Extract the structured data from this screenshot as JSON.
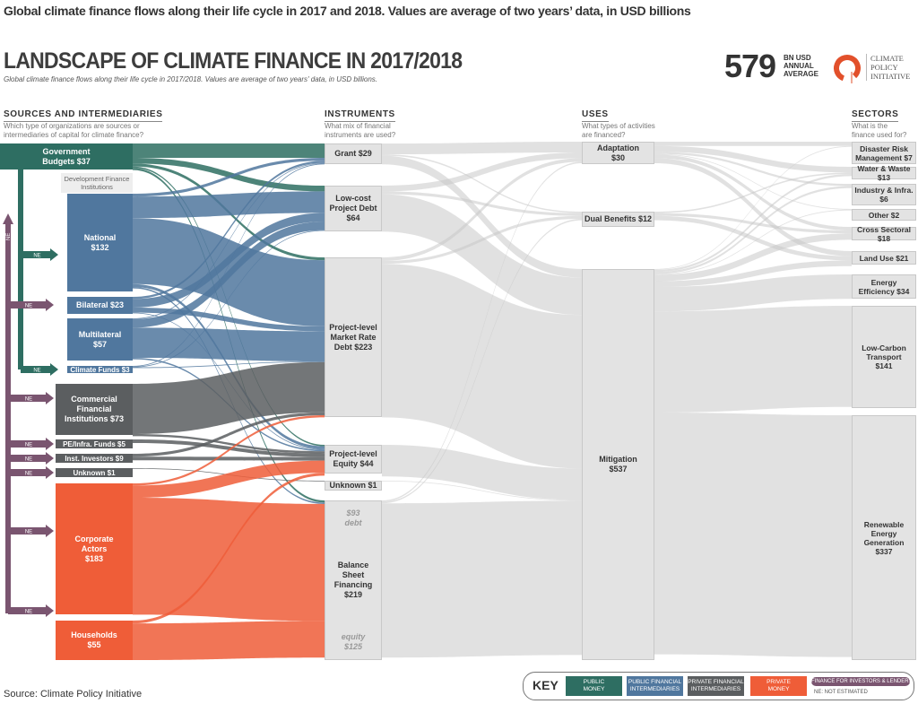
{
  "caption": "Global climate finance flows along their life cycle in 2017 and 2018. Values are average of two years’ data, in USD billions",
  "title": "LANDSCAPE OF CLIMATE FINANCE IN 2017/2018",
  "subtitle": "Global climate finance flows along their life cycle in 2017/2018. Values are average of two years' data, in USD billions.",
  "total": {
    "value": "579",
    "unit": "BN USD\nANNUAL\nAVERAGE"
  },
  "logo": {
    "text": "CLIMATE\nPOLICY\nINITIATIVE",
    "color": "#e2502b"
  },
  "columns": [
    {
      "title": "SOURCES AND INTERMEDIARIES",
      "question": "Which type of organizations are sources or\nintermediaries of capital for climate finance?"
    },
    {
      "title": "INSTRUMENTS",
      "question": "What mix of financial\ninstruments are used?"
    },
    {
      "title": "USES",
      "question": "What types of activities\nare financed?"
    },
    {
      "title": "SECTORS",
      "question": "What is the\nfinance used for?"
    }
  ],
  "colors": {
    "public": "#2e6e62",
    "public_intermediary": "#50779e",
    "private_intermediary": "#5b5e60",
    "private": "#ef5d38",
    "investors": "#7a5570",
    "neutral": "#e3e3e3",
    "flow_gray": "#c9c9c9"
  },
  "dfi_label": "Development Finance\nInstitutions",
  "ne_label": "NE",
  "sources": [
    {
      "id": "gov",
      "label": "Government\nBudgets $37",
      "value": 37,
      "kind": "public"
    },
    {
      "id": "nat",
      "label": "National\n$132",
      "value": 132,
      "kind": "public_intermediary"
    },
    {
      "id": "bil",
      "label": "Bilateral $23",
      "value": 23,
      "kind": "public_intermediary"
    },
    {
      "id": "mul",
      "label": "Multilateral\n$57",
      "value": 57,
      "kind": "public_intermediary"
    },
    {
      "id": "cf",
      "label": "Climate Funds $3",
      "value": 3,
      "kind": "public_intermediary"
    },
    {
      "id": "com",
      "label": "Commercial\nFinancial\nInstitutions $73",
      "value": 73,
      "kind": "private_intermediary"
    },
    {
      "id": "pe",
      "label": "PE/Infra. Funds $5",
      "value": 5,
      "kind": "private_intermediary"
    },
    {
      "id": "inv",
      "label": "Inst. Investors $9",
      "value": 9,
      "kind": "private_intermediary"
    },
    {
      "id": "unk",
      "label": "Unknown $1",
      "value": 1,
      "kind": "private_intermediary"
    },
    {
      "id": "corp",
      "label": "Corporate\nActors\n$183",
      "value": 183,
      "kind": "private"
    },
    {
      "id": "hh",
      "label": "Households\n$55",
      "value": 55,
      "kind": "private"
    }
  ],
  "instruments": [
    {
      "id": "grant",
      "label": "Grant $29",
      "value": 29
    },
    {
      "id": "lcd",
      "label": "Low-cost\nProject Debt\n$64",
      "value": 64
    },
    {
      "id": "mrd",
      "label": "Project-level\nMarket Rate\nDebt $223",
      "value": 223
    },
    {
      "id": "eq",
      "label": "Project-level\nEquity $44",
      "value": 44
    },
    {
      "id": "iunk",
      "label": "Unknown $1",
      "value": 1
    },
    {
      "id": "bsf",
      "label": "Balance\nSheet\nFinancing\n$219",
      "value": 219,
      "debt": "$93\ndebt",
      "equity": "equity\n$125"
    }
  ],
  "uses": [
    {
      "id": "ada",
      "label": "Adaptation\n$30",
      "value": 30
    },
    {
      "id": "dual",
      "label": "Dual Benefits $12",
      "value": 12
    },
    {
      "id": "mit",
      "label": "Mitigation\n$537",
      "value": 537
    }
  ],
  "sectors": [
    {
      "id": "drm",
      "label": "Disaster Risk\nManagement $7",
      "value": 7
    },
    {
      "id": "ww",
      "label": "Water & Waste $13",
      "value": 13
    },
    {
      "id": "ind",
      "label": "Industry & Infra.\n$6",
      "value": 6
    },
    {
      "id": "oth",
      "label": "Other $2",
      "value": 2
    },
    {
      "id": "cs",
      "label": "Cross Sectoral $18",
      "value": 18
    },
    {
      "id": "lu",
      "label": "Land Use $21",
      "value": 21
    },
    {
      "id": "ee",
      "label": "Energy\nEfficiency $34",
      "value": 34
    },
    {
      "id": "lct",
      "label": "Low-Carbon\nTransport\n$141",
      "value": 141
    },
    {
      "id": "reg",
      "label": "Renewable\nEnergy\nGeneration\n$337",
      "value": 337
    }
  ],
  "links": [
    [
      "gov",
      "grant",
      20
    ],
    [
      "gov",
      "lcd",
      8
    ],
    [
      "gov",
      "mrd",
      4
    ],
    [
      "gov",
      "eq",
      2
    ],
    [
      "gov",
      "bsf",
      3
    ],
    [
      "nat",
      "grant",
      4
    ],
    [
      "nat",
      "lcd",
      30
    ],
    [
      "nat",
      "mrd",
      92
    ],
    [
      "nat",
      "eq",
      4
    ],
    [
      "nat",
      "bsf",
      2
    ],
    [
      "bil",
      "grant",
      3
    ],
    [
      "bil",
      "lcd",
      12
    ],
    [
      "bil",
      "mrd",
      7
    ],
    [
      "bil",
      "eq",
      1
    ],
    [
      "mul",
      "grant",
      1
    ],
    [
      "mul",
      "lcd",
      12
    ],
    [
      "mul",
      "mrd",
      42
    ],
    [
      "mul",
      "eq",
      2
    ],
    [
      "cf",
      "grant",
      1
    ],
    [
      "cf",
      "lcd",
      1
    ],
    [
      "cf",
      "mrd",
      1
    ],
    [
      "com",
      "mrd",
      70
    ],
    [
      "com",
      "eq",
      3
    ],
    [
      "pe",
      "eq",
      5
    ],
    [
      "inv",
      "mrd",
      4
    ],
    [
      "inv",
      "eq",
      5
    ],
    [
      "unk",
      "iunk",
      1
    ],
    [
      "corp",
      "mrd",
      3
    ],
    [
      "corp",
      "eq",
      17
    ],
    [
      "corp",
      "bsf",
      163
    ],
    [
      "hh",
      "eq",
      4
    ],
    [
      "hh",
      "bsf",
      51
    ],
    [
      "grant",
      "ada",
      15
    ],
    [
      "grant",
      "dual",
      2
    ],
    [
      "grant",
      "mit",
      12
    ],
    [
      "lcd",
      "ada",
      8
    ],
    [
      "lcd",
      "dual",
      4
    ],
    [
      "lcd",
      "mit",
      52
    ],
    [
      "mrd",
      "ada",
      5
    ],
    [
      "mrd",
      "dual",
      4
    ],
    [
      "mrd",
      "mit",
      214
    ],
    [
      "eq",
      "mit",
      44
    ],
    [
      "iunk",
      "mit",
      1
    ],
    [
      "bsf",
      "ada",
      2
    ],
    [
      "bsf",
      "dual",
      2
    ],
    [
      "bsf",
      "mit",
      215
    ],
    [
      "ada",
      "drm",
      6
    ],
    [
      "ada",
      "ww",
      8
    ],
    [
      "ada",
      "ind",
      3
    ],
    [
      "ada",
      "oth",
      1
    ],
    [
      "ada",
      "cs",
      5
    ],
    [
      "ada",
      "lu",
      7
    ],
    [
      "dual",
      "ww",
      2
    ],
    [
      "dual",
      "cs",
      4
    ],
    [
      "dual",
      "lu",
      6
    ],
    [
      "mit",
      "drm",
      1
    ],
    [
      "mit",
      "ww",
      3
    ],
    [
      "mit",
      "ind",
      3
    ],
    [
      "mit",
      "oth",
      1
    ],
    [
      "mit",
      "cs",
      9
    ],
    [
      "mit",
      "lu",
      8
    ],
    [
      "mit",
      "ee",
      34
    ],
    [
      "mit",
      "lct",
      141
    ],
    [
      "mit",
      "reg",
      337
    ]
  ],
  "key": {
    "title": "KEY",
    "items": [
      {
        "label": "PUBLIC\nMONEY",
        "color": "#2e6e62"
      },
      {
        "label": "PUBLIC FINANCIAL\nINTERMEDIARIES",
        "color": "#50779e"
      },
      {
        "label": "PRIVATE FINANCIAL\nINTERMEDIARIES",
        "color": "#5b5e60"
      },
      {
        "label": "PRIVATE\nMONEY",
        "color": "#ef5d38"
      }
    ],
    "investors": "FINANCE FOR INVESTORS & LENDERS",
    "ne": "NE: NOT ESTIMATED"
  },
  "source": "Source: Climate Policy Initiative"
}
